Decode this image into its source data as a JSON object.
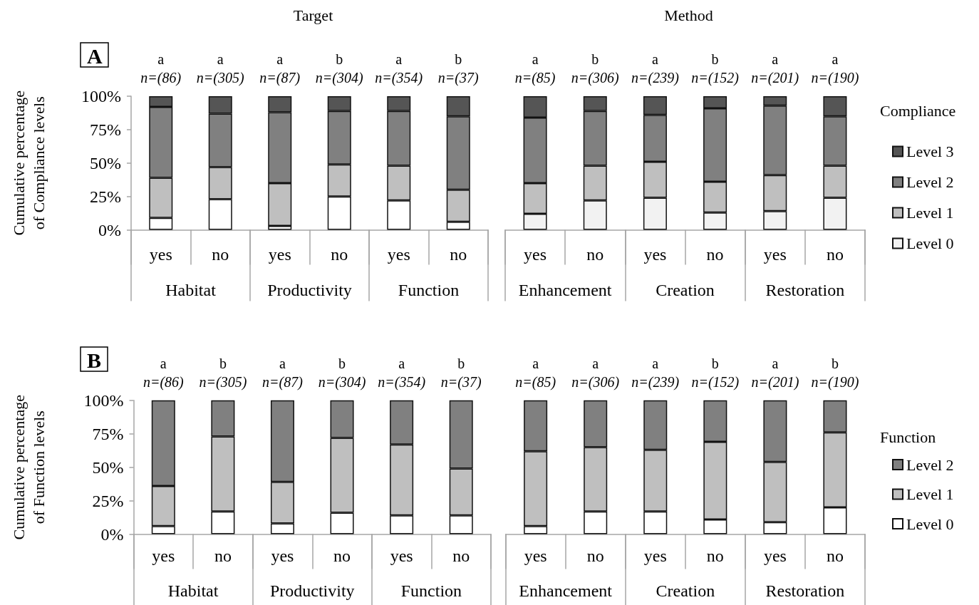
{
  "chart_data": [
    {
      "type": "bar",
      "title": "Target",
      "subtitle": "A",
      "ylabel": "Cumulative percentage of Compliance levels",
      "categories": [
        "yes",
        "no",
        "yes",
        "no",
        "yes",
        "no"
      ],
      "stacked": true,
      "ylim": [
        0,
        100
      ],
      "yticks": [
        {
          "value": 0,
          "label": "0%"
        },
        {
          "value": 25,
          "label": "25%"
        },
        {
          "value": 50,
          "label": "50%"
        },
        {
          "value": 75,
          "label": "75%"
        },
        {
          "value": 100,
          "label": "100%"
        }
      ],
      "series": [
        {
          "color": "#ffffff",
          "values": [
            9,
            23,
            3,
            25,
            22,
            6
          ]
        },
        {
          "color": "#bfbfbf",
          "values": [
            30,
            24,
            32,
            24,
            26,
            24
          ]
        },
        {
          "color": "#808080",
          "values": [
            53,
            40,
            53,
            40,
            41,
            55
          ]
        },
        {
          "color": "#555555",
          "values": [
            8,
            13,
            12,
            11,
            11,
            15
          ]
        }
      ],
      "annotations": [
        "a",
        "a",
        "a",
        "b",
        "a",
        "b",
        "n=(86)",
        "n=(305)",
        "n=(87)",
        "n=(304)",
        "n=(354)",
        "n=(37)",
        "Habitat",
        "Productivity",
        "Function"
      ]
    },
    {
      "type": "bar",
      "title": "Method",
      "categories": [
        "yes",
        "no",
        "yes",
        "no",
        "yes",
        "no"
      ],
      "stacked": true,
      "ylim": [
        0,
        100
      ],
      "tick_labels": "x",
      "legend": "right",
      "legend_title": "Compliance",
      "series": [
        {
          "name": "Level 0",
          "color": "#f2f2f2",
          "values": [
            12,
            22,
            24,
            13,
            14,
            24
          ]
        },
        {
          "name": "Level 1",
          "color": "#bfbfbf",
          "values": [
            23,
            26,
            27,
            23,
            27,
            24
          ]
        },
        {
          "name": "Level 2",
          "color": "#808080",
          "values": [
            49,
            41,
            35,
            55,
            52,
            37
          ]
        },
        {
          "name": "Level 3",
          "color": "#555555",
          "values": [
            16,
            11,
            14,
            9,
            7,
            15
          ]
        }
      ],
      "annotations": [
        "a",
        "b",
        "a",
        "b",
        "a",
        "a",
        "n=(85)",
        "n=(306)",
        "n=(239)",
        "n=(152)",
        "n=(201)",
        "n=(190)",
        "Enhancement",
        "Creation",
        "Restoration"
      ]
    },
    {
      "type": "bar",
      "subtitle": "B",
      "ylabel": "Cumulative percentage of Function levels",
      "categories": [
        "yes",
        "no",
        "yes",
        "no",
        "yes",
        "no"
      ],
      "stacked": true,
      "ylim": [
        0,
        100
      ],
      "yticks": [
        {
          "value": 0,
          "label": "0%"
        },
        {
          "value": 25,
          "label": "25%"
        },
        {
          "value": 50,
          "label": "50%"
        },
        {
          "value": 75,
          "label": "75%"
        },
        {
          "value": 100,
          "label": "100%"
        }
      ],
      "series": [
        {
          "color": "#ffffff",
          "values": [
            6,
            17,
            8,
            16,
            14,
            14
          ]
        },
        {
          "color": "#bfbfbf",
          "values": [
            30,
            56,
            31,
            56,
            53,
            35
          ]
        },
        {
          "color": "#808080",
          "values": [
            64,
            27,
            61,
            28,
            33,
            51
          ]
        }
      ],
      "annotations": [
        "a",
        "b",
        "a",
        "b",
        "a",
        "b",
        "n=(86)",
        "n=(305)",
        "n=(87)",
        "n=(304)",
        "n=(354)",
        "n=(37)",
        "Habitat",
        "Productivity",
        "Function"
      ]
    },
    {
      "type": "bar",
      "categories": [
        "yes",
        "no",
        "yes",
        "no",
        "yes",
        "no"
      ],
      "stacked": true,
      "ylim": [
        0,
        100
      ],
      "tick_labels": "x",
      "legend": "right",
      "legend_title": "Function",
      "series": [
        {
          "name": "Level 0",
          "color": "#ffffff",
          "values": [
            6,
            17,
            17,
            11,
            9,
            20
          ]
        },
        {
          "name": "Level 1",
          "color": "#bfbfbf",
          "values": [
            56,
            48,
            46,
            58,
            45,
            56
          ]
        },
        {
          "name": "Level 2",
          "color": "#808080",
          "values": [
            38,
            35,
            37,
            31,
            46,
            24
          ]
        }
      ],
      "annotations": [
        "a",
        "a",
        "a",
        "b",
        "a",
        "b",
        "n=(85)",
        "n=(306)",
        "n=(239)",
        "n=(152)",
        "n=(201)",
        "n=(190)",
        "Enhancement",
        "Creation",
        "Restoration"
      ]
    }
  ]
}
